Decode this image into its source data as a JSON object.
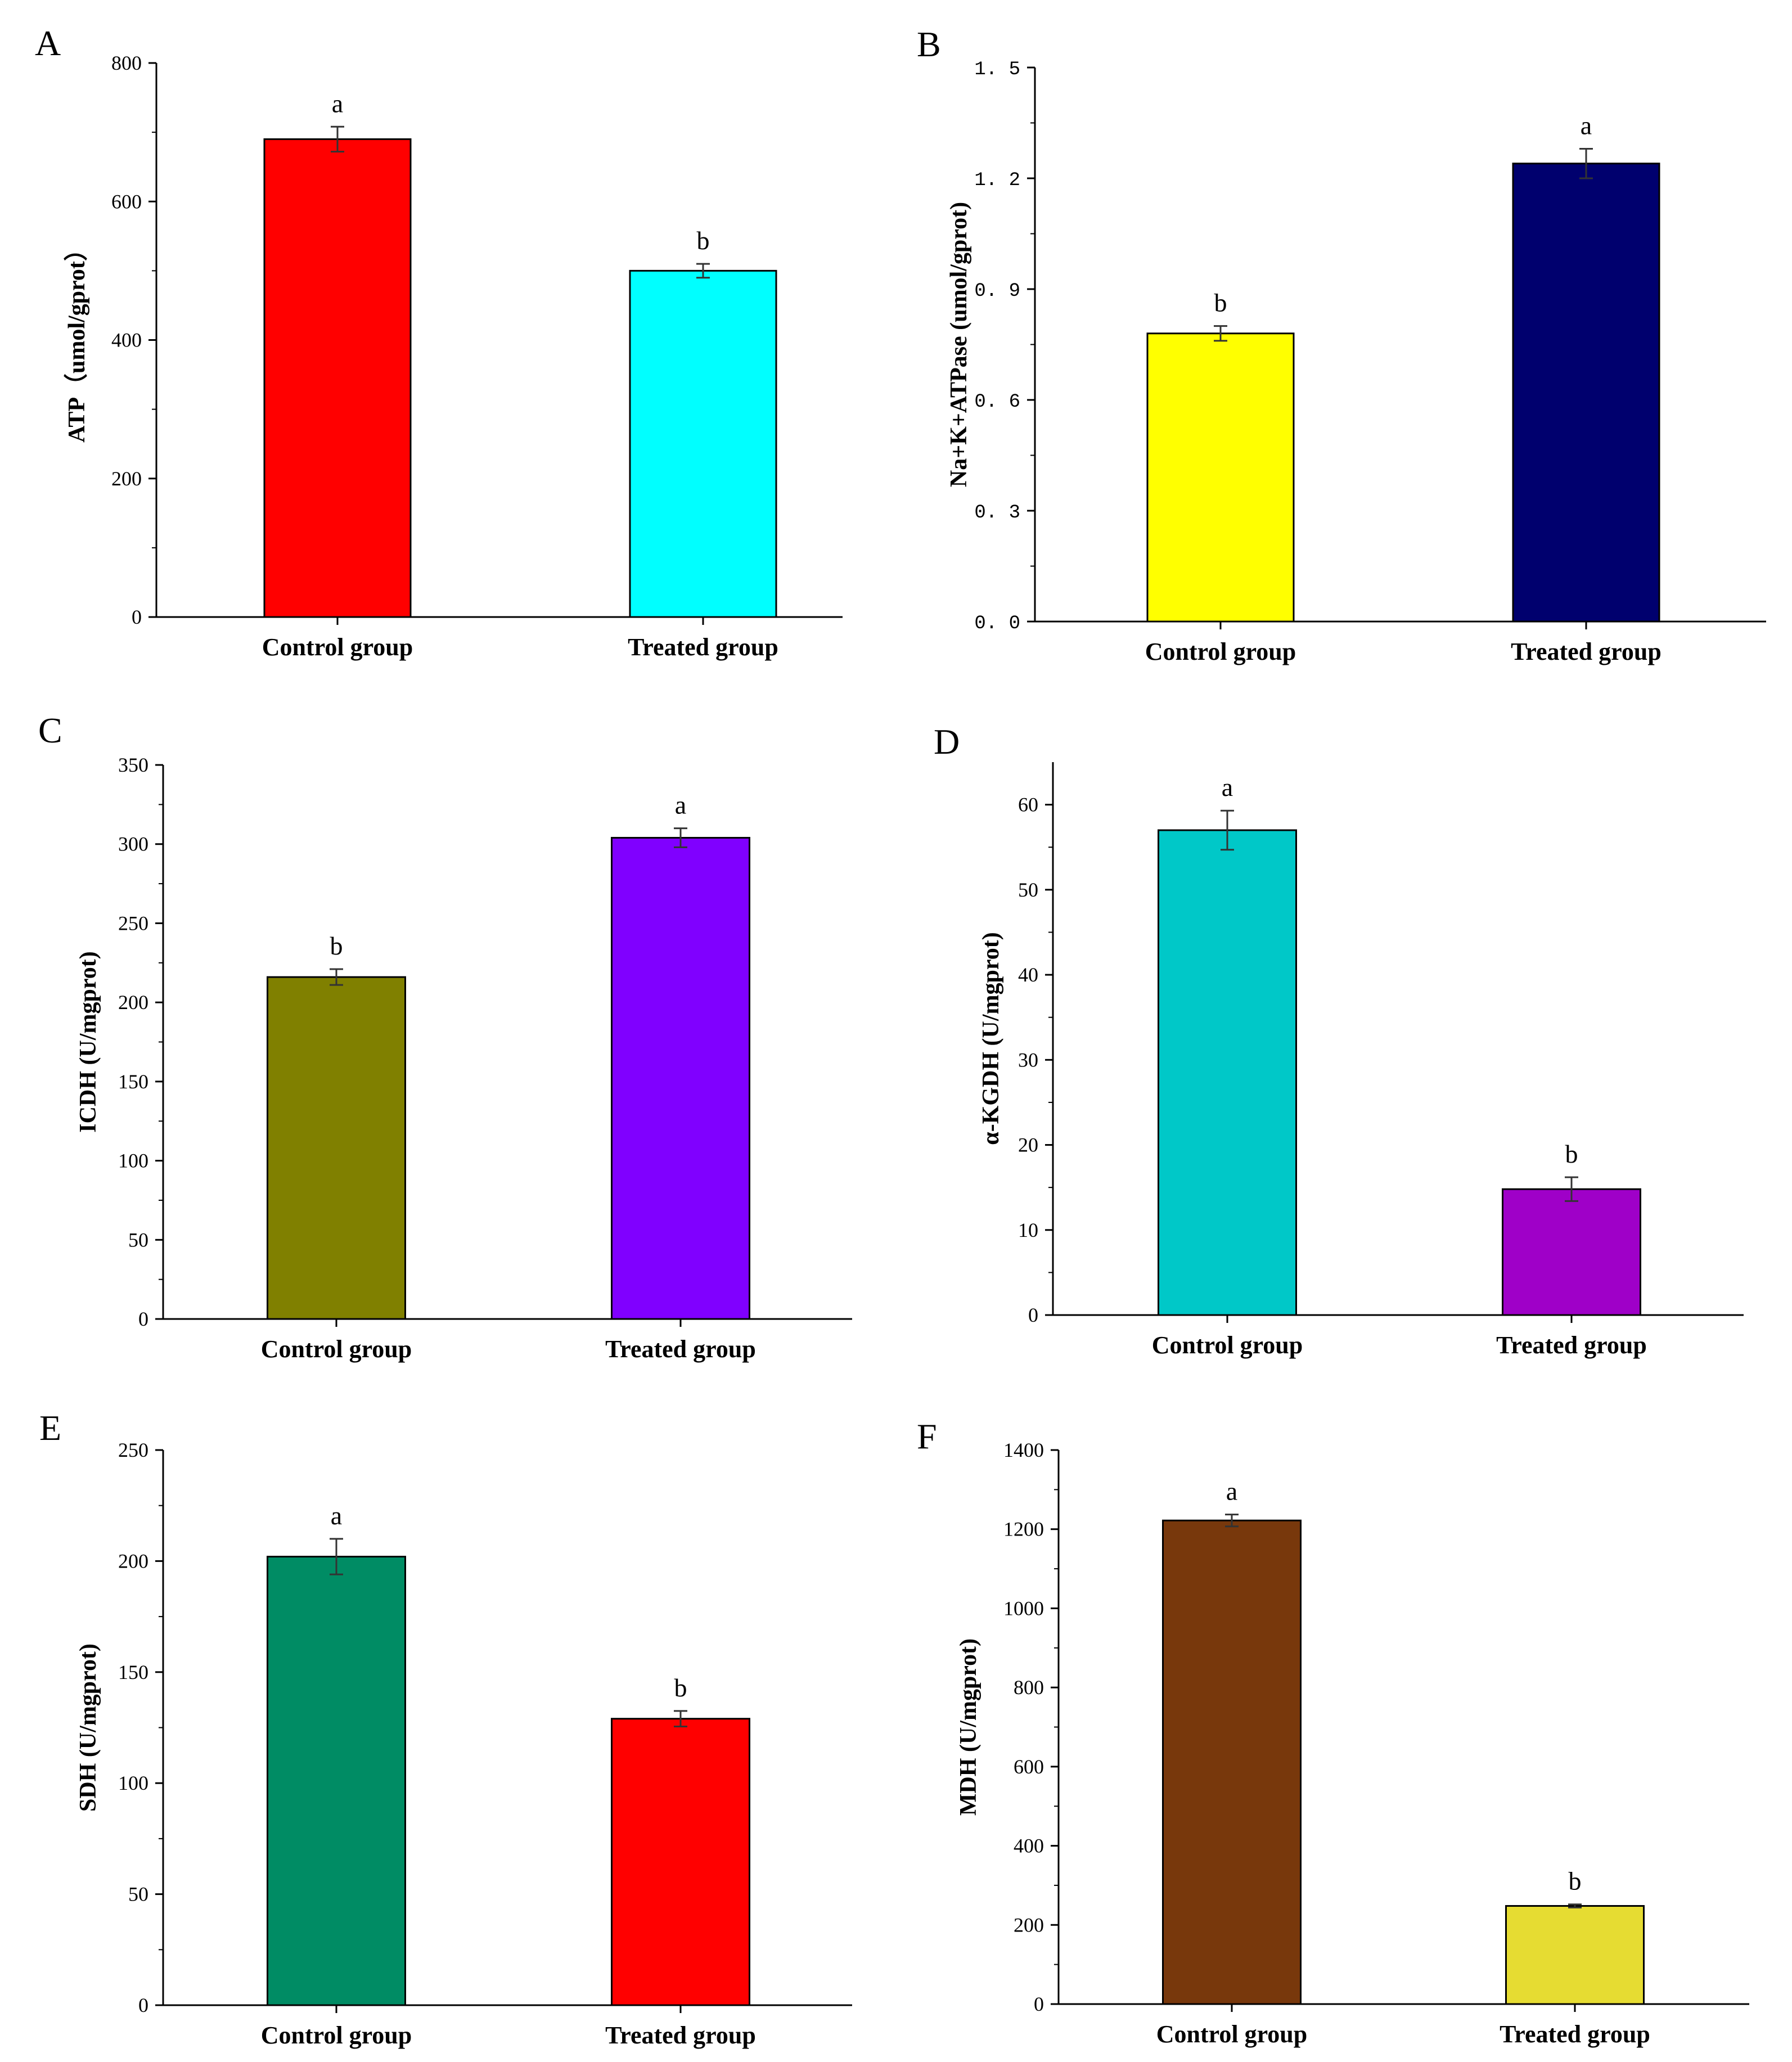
{
  "chart_data": [
    {
      "panel": "A",
      "type": "bar",
      "categories": [
        "Control group",
        "Treated group"
      ],
      "values": [
        690,
        500
      ],
      "errors": [
        18,
        10
      ],
      "significance": [
        "a",
        "b"
      ],
      "colors": [
        "#ff0000",
        "#00ffff"
      ],
      "ylabel": "ATP（umol/gprot）",
      "ylim": [
        0,
        800
      ],
      "yticks": [
        0,
        200,
        400,
        600,
        800
      ],
      "ytick_labels": [
        "0",
        "200",
        "400",
        "600",
        "800"
      ]
    },
    {
      "panel": "B",
      "type": "bar",
      "categories": [
        "Control group",
        "Treated group"
      ],
      "values": [
        0.78,
        1.24
      ],
      "errors": [
        0.02,
        0.04
      ],
      "significance": [
        "b",
        "a"
      ],
      "colors": [
        "#ffff00",
        "#00006e"
      ],
      "ylabel": "Na+K+ATPase (umol/gprot)",
      "ylim": [
        0,
        1.5
      ],
      "yticks": [
        0,
        0.3,
        0.6,
        0.9,
        1.2,
        1.5
      ],
      "ytick_labels": [
        "0. 0",
        "0. 3",
        "0. 6",
        "0. 9",
        "1. 2",
        "1. 5"
      ]
    },
    {
      "panel": "C",
      "type": "bar",
      "categories": [
        "Control group",
        "Treated group"
      ],
      "values": [
        216,
        304
      ],
      "errors": [
        5,
        6
      ],
      "significance": [
        "b",
        "a"
      ],
      "colors": [
        "#808000",
        "#8000ff"
      ],
      "ylabel": "ICDH (U/mgprot)",
      "ylim": [
        0,
        350
      ],
      "yticks": [
        0,
        50,
        100,
        150,
        200,
        250,
        300,
        350
      ],
      "ytick_labels": [
        "0",
        "50",
        "100",
        "150",
        "200",
        "250",
        "300",
        "350"
      ]
    },
    {
      "panel": "D",
      "type": "bar",
      "categories": [
        "Control group",
        "Treated group"
      ],
      "values": [
        57,
        14.8
      ],
      "errors": [
        2.3,
        1.4
      ],
      "significance": [
        "a",
        "b"
      ],
      "colors": [
        "#00c8c8",
        "#9f00c8"
      ],
      "ylabel": "α-KGDH (U/mgprot)",
      "ylim": [
        0,
        65
      ],
      "yticks": [
        0,
        10,
        20,
        30,
        40,
        50,
        60
      ],
      "ytick_labels": [
        "0",
        "10",
        "20",
        "30",
        "40",
        "50",
        "60"
      ]
    },
    {
      "panel": "E",
      "type": "bar",
      "categories": [
        "Control group",
        "Treated group"
      ],
      "values": [
        202,
        129
      ],
      "errors": [
        8,
        3.5
      ],
      "significance": [
        "a",
        "b"
      ],
      "colors": [
        "#008c64",
        "#ff0000"
      ],
      "ylabel": "SDH (U/mgprot)",
      "ylim": [
        0,
        250
      ],
      "yticks": [
        0,
        50,
        100,
        150,
        200,
        250
      ],
      "ytick_labels": [
        "0",
        "50",
        "100",
        "150",
        "200",
        "250"
      ]
    },
    {
      "panel": "F",
      "type": "bar",
      "categories": [
        "Control group",
        "Treated group"
      ],
      "values": [
        1222,
        248
      ],
      "errors": [
        15,
        4
      ],
      "significance": [
        "a",
        "b"
      ],
      "colors": [
        "#78380c",
        "#e6dc32"
      ],
      "ylabel": "MDH (U/mgprot)",
      "ylim": [
        0,
        1400
      ],
      "yticks": [
        0,
        200,
        400,
        600,
        800,
        1000,
        1200,
        1400
      ],
      "ytick_labels": [
        "0",
        "200",
        "400",
        "600",
        "800",
        "1000",
        "1200",
        "1400"
      ]
    }
  ]
}
